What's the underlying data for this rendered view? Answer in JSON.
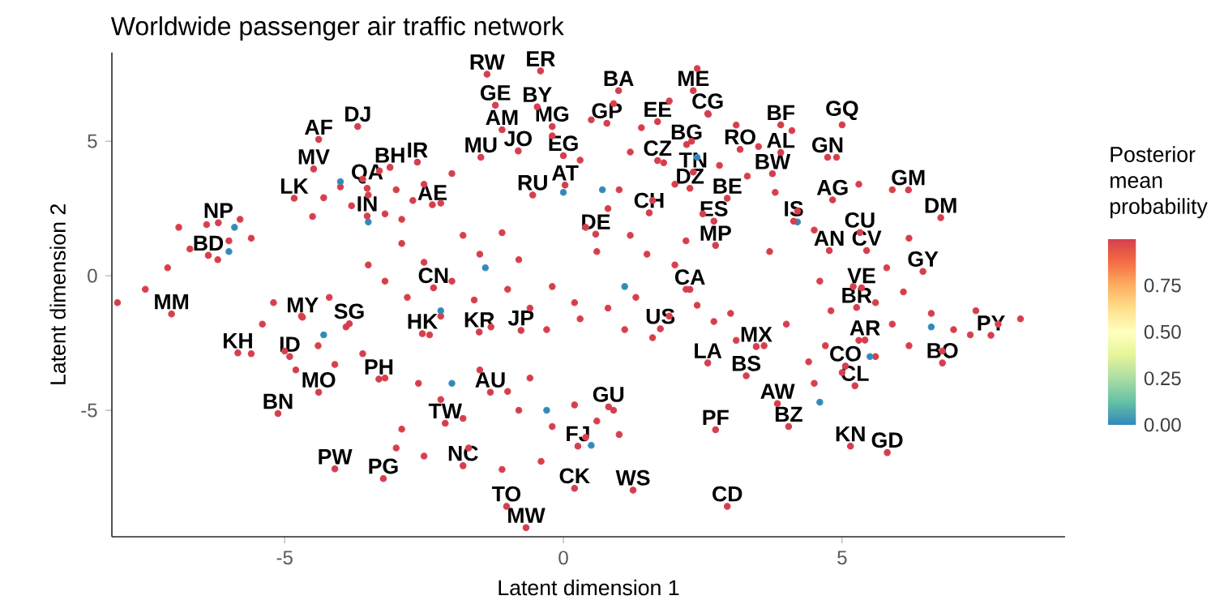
{
  "chart_data": {
    "type": "scatter",
    "title": "Worldwide passenger air traffic network",
    "xlabel": "Latent dimension 1",
    "ylabel": "Latent dimension 2",
    "clabel": "Posterior mean probability",
    "xlim": [
      -8.1,
      9.0
    ],
    "ylim": [
      -9.7,
      8.3
    ],
    "xticks": [
      -5,
      0,
      5
    ],
    "yticks": [
      -5,
      0,
      5
    ],
    "clim": [
      0,
      1
    ],
    "cticks": [
      {
        "value": 0,
        "label": "0.00"
      },
      {
        "value": 0.25,
        "label": "0.25"
      },
      {
        "value": 0.5,
        "label": "0.50"
      },
      {
        "value": 0.75,
        "label": "0.75"
      }
    ],
    "marker": "circle",
    "series": [
      {
        "x": [
          -3.5,
          -3.0,
          -2.7,
          -3.8,
          -3.2,
          -4.0,
          -2.5,
          -3.6,
          -2.9,
          -4.3,
          -2.2,
          -3.3,
          -4.5,
          -2.0,
          -6.4,
          -6.0,
          -6.7,
          -5.8,
          -6.2,
          -6.9,
          -5.6,
          -7.1,
          -7.5,
          -8.0,
          -2.5,
          -2.0,
          -1.5,
          -1.0,
          -2.8,
          -2.2,
          -1.3,
          -0.6,
          -0.2,
          -1.8,
          -2.9,
          -0.8,
          -3.2,
          -1.6,
          -2.4,
          -0.3,
          0.2,
          -1.1,
          -3.5,
          -4.7,
          -4.2,
          -3.9,
          -5.0,
          -4.4,
          -3.6,
          -5.4,
          -4.8,
          -3.2,
          -5.6,
          -4.1,
          -5.2,
          -1.5,
          -1.0,
          -2.2,
          -0.6,
          -1.8,
          -2.6,
          0.2,
          0.6,
          -0.2,
          0.9,
          1.0,
          -0.8,
          0.4,
          -2.9,
          -2.5,
          -3.0,
          -1.7,
          -0.4,
          -1.1,
          0.8,
          0.4,
          1.2,
          1.6,
          2.0,
          1.0,
          2.5,
          1.8,
          2.3,
          1.4,
          0.9,
          1.9,
          2.6,
          3.1,
          2.8,
          0.3,
          -0.2,
          0.5,
          1.2,
          3.5,
          3.3,
          2.2,
          1.5,
          0.6,
          3.8,
          2.4,
          4.1,
          0.8,
          1.3,
          1.9,
          2.4,
          1.1,
          2.7,
          0.3,
          1.6,
          2.2,
          3.0,
          3.1,
          2.0,
          5.2,
          5.6,
          4.8,
          5.9,
          5.3,
          4.7,
          5.6,
          6.1,
          4.6,
          5.0,
          4.5,
          6.2,
          5.8,
          4.4,
          6.6,
          7.0,
          7.4,
          7.8,
          8.2,
          6.8,
          7.3,
          3.6,
          4.0,
          4.2,
          4.9,
          5.3,
          5.9,
          6.2,
          3.7,
          4.5,
          -4.0,
          -3.5,
          -5.9,
          -6.0,
          -2.2,
          -1.4,
          -4.3,
          -2.0,
          -0.3,
          0.5,
          1.1,
          0.7,
          4.2,
          5.5,
          4.6,
          6.6,
          0.0,
          2.4
        ],
        "values": [
          3.0,
          3.2,
          2.8,
          2.6,
          2.3,
          3.3,
          3.4,
          3.6,
          2.1,
          2.9,
          2.7,
          3.9,
          2.2,
          3.8,
          1.9,
          1.3,
          1.0,
          2.1,
          0.6,
          1.8,
          1.4,
          0.3,
          -0.5,
          -1.0,
          0.5,
          -0.2,
          0.8,
          -0.5,
          -0.8,
          -1.5,
          -1.9,
          -1.2,
          -0.4,
          1.5,
          1.2,
          0.6,
          -0.2,
          -0.9,
          -2.2,
          -2.0,
          -1.0,
          1.6,
          0.4,
          -1.5,
          -0.8,
          -1.9,
          -2.8,
          -2.6,
          -2.9,
          -1.8,
          -3.5,
          -3.8,
          -2.9,
          -3.3,
          -1.0,
          -3.5,
          -4.3,
          -4.6,
          -3.8,
          -5.3,
          -4.0,
          -4.8,
          -5.4,
          -5.6,
          -5.0,
          -5.9,
          -5.0,
          -6.0,
          -5.7,
          -6.7,
          -6.4,
          -6.4,
          -6.9,
          -7.2,
          2.5,
          1.8,
          1.5,
          2.8,
          3.4,
          3.2,
          2.3,
          4.2,
          5.0,
          5.5,
          6.4,
          6.5,
          6.0,
          5.6,
          4.1,
          4.3,
          5.2,
          5.8,
          4.6,
          4.8,
          3.7,
          1.3,
          0.8,
          0.9,
          3.1,
          7.7,
          5.4,
          -1.2,
          -0.8,
          -1.5,
          -1.1,
          -2.0,
          -1.7,
          -1.6,
          -2.3,
          -0.5,
          -1.4,
          -2.4,
          0.4,
          -0.4,
          -1.0,
          -1.3,
          -1.8,
          -2.4,
          -2.6,
          -3.0,
          -0.6,
          -0.2,
          -3.6,
          -4.0,
          -2.6,
          0.3,
          -3.2,
          -1.4,
          -2.0,
          -1.3,
          -1.8,
          -1.6,
          -2.8,
          -2.2,
          -2.6,
          -1.8,
          2.4,
          4.4,
          3.4,
          3.2,
          1.4,
          0.9,
          1.7,
          3.5,
          2.0,
          1.8,
          0.9,
          -1.3,
          0.3,
          -2.2,
          -4.0,
          -5.0,
          -6.3,
          -0.4,
          3.2,
          2.0,
          -3.0,
          -4.7,
          -1.9,
          3.1,
          4.4
        ],
        "cvalues": [
          0.97,
          0.97,
          0.97,
          0.97,
          0.97,
          0.97,
          0.97,
          0.97,
          0.97,
          0.97,
          0.97,
          0.97,
          0.97,
          0.97,
          0.97,
          0.97,
          0.97,
          0.97,
          0.97,
          0.97,
          0.97,
          0.97,
          0.97,
          0.97,
          0.97,
          0.97,
          0.97,
          0.97,
          0.97,
          0.97,
          0.97,
          0.97,
          0.97,
          0.97,
          0.97,
          0.97,
          0.97,
          0.97,
          0.97,
          0.97,
          0.97,
          0.97,
          0.97,
          0.97,
          0.97,
          0.97,
          0.97,
          0.97,
          0.97,
          0.97,
          0.97,
          0.97,
          0.97,
          0.97,
          0.97,
          0.97,
          0.97,
          0.97,
          0.97,
          0.97,
          0.97,
          0.97,
          0.97,
          0.97,
          0.97,
          0.97,
          0.97,
          0.97,
          0.97,
          0.97,
          0.97,
          0.97,
          0.97,
          0.97,
          0.97,
          0.97,
          0.97,
          0.97,
          0.97,
          0.97,
          0.97,
          0.97,
          0.97,
          0.97,
          0.97,
          0.97,
          0.97,
          0.97,
          0.97,
          0.97,
          0.97,
          0.97,
          0.97,
          0.97,
          0.97,
          0.97,
          0.97,
          0.97,
          0.97,
          0.97,
          0.97,
          0.97,
          0.97,
          0.97,
          0.97,
          0.97,
          0.97,
          0.97,
          0.97,
          0.97,
          0.97,
          0.97,
          0.97,
          0.97,
          0.97,
          0.97,
          0.97,
          0.97,
          0.97,
          0.97,
          0.97,
          0.97,
          0.97,
          0.97,
          0.97,
          0.97,
          0.97,
          0.97,
          0.97,
          0.97,
          0.97,
          0.97,
          0.97,
          0.97,
          0.97,
          0.97,
          0.97,
          0.97,
          0.97,
          0.97,
          0.97,
          0.97,
          0.97,
          0.03,
          0.03,
          0.03,
          0.03,
          0.03,
          0.03,
          0.03,
          0.03,
          0.03,
          0.03,
          0.03,
          0.03,
          0.03,
          0.03,
          0.03,
          0.03,
          0.03,
          0.03
        ],
        "colors": [
          "#d53e4f",
          "#d53e4f",
          "#d53e4f",
          "#d53e4f",
          "#d53e4f",
          "#d53e4f",
          "#d53e4f",
          "#d53e4f",
          "#d53e4f",
          "#d53e4f",
          "#d53e4f",
          "#d53e4f",
          "#d53e4f",
          "#d53e4f",
          "#d53e4f",
          "#d53e4f",
          "#d53e4f",
          "#d53e4f",
          "#d53e4f",
          "#d53e4f",
          "#d53e4f",
          "#d53e4f",
          "#d53e4f",
          "#d53e4f",
          "#d53e4f",
          "#d53e4f",
          "#d53e4f",
          "#d53e4f",
          "#d53e4f",
          "#d53e4f",
          "#d53e4f",
          "#d53e4f",
          "#d53e4f",
          "#d53e4f",
          "#d53e4f",
          "#d53e4f",
          "#d53e4f",
          "#d53e4f",
          "#d53e4f",
          "#d53e4f",
          "#d53e4f",
          "#d53e4f",
          "#d53e4f",
          "#d53e4f",
          "#d53e4f",
          "#d53e4f",
          "#d53e4f",
          "#d53e4f",
          "#d53e4f",
          "#d53e4f",
          "#d53e4f",
          "#d53e4f",
          "#d53e4f",
          "#d53e4f",
          "#d53e4f",
          "#d53e4f",
          "#d53e4f",
          "#d53e4f",
          "#d53e4f",
          "#d53e4f",
          "#d53e4f",
          "#d53e4f",
          "#d53e4f",
          "#d53e4f",
          "#d53e4f",
          "#d53e4f",
          "#d53e4f",
          "#d53e4f",
          "#d53e4f",
          "#d53e4f",
          "#d53e4f",
          "#d53e4f",
          "#d53e4f",
          "#d53e4f",
          "#d53e4f",
          "#d53e4f",
          "#d53e4f",
          "#d53e4f",
          "#d53e4f",
          "#d53e4f",
          "#d53e4f",
          "#d53e4f",
          "#d53e4f",
          "#d53e4f",
          "#d53e4f",
          "#d53e4f",
          "#d53e4f",
          "#d53e4f",
          "#d53e4f",
          "#d53e4f",
          "#d53e4f",
          "#d53e4f",
          "#d53e4f",
          "#d53e4f",
          "#d53e4f",
          "#d53e4f",
          "#d53e4f",
          "#d53e4f",
          "#d53e4f",
          "#d53e4f",
          "#d53e4f",
          "#d53e4f",
          "#d53e4f",
          "#d53e4f",
          "#d53e4f",
          "#d53e4f",
          "#d53e4f",
          "#d53e4f",
          "#d53e4f",
          "#d53e4f",
          "#d53e4f",
          "#d53e4f",
          "#d53e4f",
          "#d53e4f",
          "#d53e4f",
          "#d53e4f",
          "#d53e4f",
          "#d53e4f",
          "#d53e4f",
          "#d53e4f",
          "#d53e4f",
          "#d53e4f",
          "#d53e4f",
          "#d53e4f",
          "#d53e4f",
          "#d53e4f",
          "#d53e4f",
          "#d53e4f",
          "#d53e4f",
          "#d53e4f",
          "#d53e4f",
          "#d53e4f",
          "#d53e4f",
          "#d53e4f",
          "#d53e4f",
          "#d53e4f",
          "#d53e4f",
          "#d53e4f",
          "#d53e4f",
          "#d53e4f",
          "#d53e4f",
          "#d53e4f",
          "#d53e4f",
          "#3288bd",
          "#3288bd",
          "#3288bd",
          "#3288bd",
          "#3288bd",
          "#3288bd",
          "#3288bd",
          "#3288bd",
          "#3288bd",
          "#3288bd",
          "#3288bd",
          "#3288bd",
          "#3288bd",
          "#3288bd",
          "#3288bd",
          "#3288bd",
          "#3288bd",
          "#3288bd"
        ]
      },
      {
        "color": "#d53e4f",
        "x": [
          -1.37,
          -0.41,
          0.99,
          2.33,
          2.59,
          -1.22,
          -0.47,
          -1.1,
          -0.2,
          -0.81,
          -1.48,
          0.0,
          0.78,
          1.69,
          2.21,
          3.17,
          3.9,
          3.9,
          5.0,
          4.74,
          1.69,
          2.33,
          3.75,
          0.03,
          -0.55,
          2.27,
          2.94,
          4.83,
          6.19,
          6.77,
          1.54,
          2.7,
          4.13,
          5.32,
          0.58,
          2.73,
          4.77,
          5.44,
          6.45,
          2.27,
          5.35,
          5.26,
          1.74,
          5.41,
          7.67,
          3.46,
          6.8,
          2.59,
          5.06,
          3.28,
          5.23,
          3.84,
          0.81,
          4.04,
          0.26,
          2.73,
          5.15,
          5.81,
          0.2,
          1.25,
          2.94,
          -4.39,
          -3.69,
          -4.48,
          -3.11,
          -2.62,
          -4.83,
          -3.52,
          -3.52,
          -2.35,
          -6.19,
          -6.37,
          -2.33,
          -7.03,
          -4.68,
          -3.84,
          -2.53,
          -1.51,
          -0.76,
          -5.84,
          -4.91,
          -3.31,
          -4.39,
          -1.31,
          -5.12,
          -2.12,
          -4.1,
          -3.23,
          -1.8,
          -1.02,
          -0.67
        ],
        "values": [
          7.49,
          7.61,
          6.88,
          6.88,
          6.03,
          6.34,
          6.28,
          5.43,
          5.55,
          4.64,
          4.4,
          4.46,
          5.67,
          5.73,
          4.88,
          4.7,
          5.61,
          4.58,
          5.61,
          4.4,
          4.28,
          3.85,
          3.79,
          3.37,
          3.0,
          3.25,
          2.88,
          2.82,
          3.19,
          2.16,
          2.34,
          2.03,
          2.03,
          1.61,
          1.55,
          1.13,
          0.94,
          0.94,
          0.16,
          -0.51,
          -0.45,
          -1.18,
          -1.97,
          -2.39,
          -2.21,
          -2.63,
          -3.24,
          -3.24,
          -3.36,
          -3.72,
          -4.09,
          -4.75,
          -4.87,
          -5.6,
          -6.33,
          -5.72,
          -6.33,
          -6.57,
          -7.9,
          -7.97,
          -8.57,
          5.07,
          5.55,
          3.97,
          4.03,
          4.22,
          2.88,
          3.25,
          2.22,
          2.64,
          1.97,
          0.76,
          -0.45,
          -1.42,
          -1.54,
          -1.78,
          -2.15,
          -2.09,
          -2.03,
          -2.87,
          -3.0,
          -3.84,
          -4.33,
          -4.33,
          -5.12,
          -5.48,
          -7.18,
          -7.54,
          -7.06,
          -8.57,
          -9.36
        ],
        "value_labels": [
          "RW",
          "ER",
          "BA",
          "ME",
          "CG",
          "GE",
          "BY",
          "AM",
          "MG",
          "JO",
          "MU",
          "EG",
          "GP",
          "EE",
          "BG",
          "RO",
          "BF",
          "AL",
          "GQ",
          "GN",
          "CZ",
          "TN",
          "BW",
          "AT",
          "RU",
          "DZ",
          "BE",
          "AG",
          "GM",
          "DM",
          "CH",
          "ES",
          "IS",
          "CU",
          "DE",
          "MP",
          "AN",
          "CV",
          "GY",
          "CA",
          "VE",
          "BR",
          "US",
          "AR",
          "PY",
          "MX",
          "BO",
          "LA",
          "CO",
          "BS",
          "CL",
          "AW",
          "GU",
          "BZ",
          "FJ",
          "PF",
          "KN",
          "GD",
          "CK",
          "WS",
          "CD",
          "AF",
          "DJ",
          "MV",
          "BH",
          "IR",
          "LK",
          "QA",
          "IN",
          "AE",
          "NP",
          "BD",
          "CN",
          "MM",
          "MY",
          "SG",
          "HK",
          "KR",
          "JP",
          "KH",
          "ID",
          "PH",
          "MO",
          "AU",
          "BN",
          "TW",
          "PW",
          "PG",
          "NC",
          "TO",
          "MW"
        ]
      }
    ]
  }
}
